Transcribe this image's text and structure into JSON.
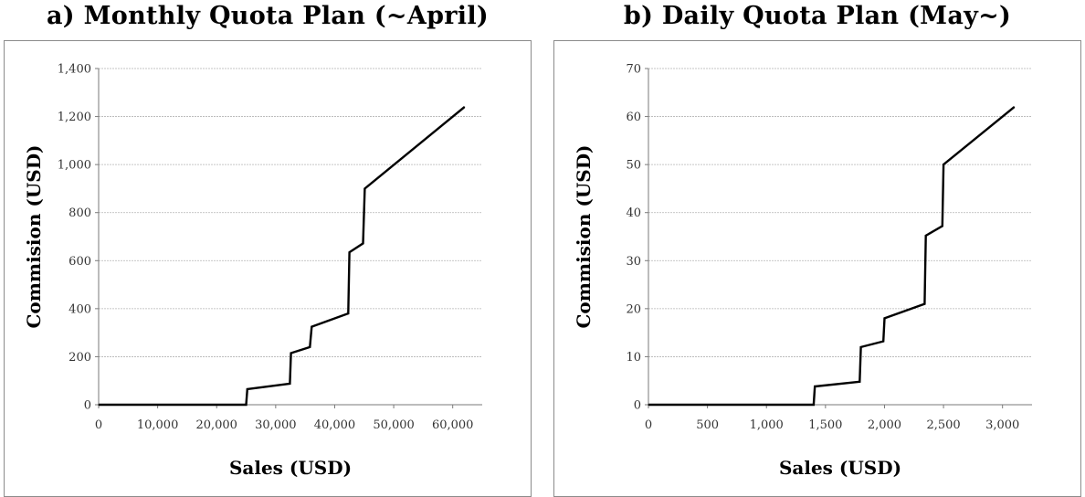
{
  "chart_data": [
    {
      "type": "line",
      "title": "a)  Monthly Quota Plan (~April)",
      "xlabel": "Sales (USD)",
      "ylabel": "Commision (USD)",
      "xlim": [
        0,
        65000
      ],
      "ylim": [
        0,
        1400
      ],
      "xticks": [
        0,
        10000,
        20000,
        30000,
        40000,
        50000,
        60000
      ],
      "yticks": [
        0,
        200,
        400,
        600,
        800,
        1000,
        1200,
        1400
      ],
      "xtick_labels": [
        "0",
        "10,000",
        "20,000",
        "30,000",
        "40,000",
        "50,000",
        "60,000"
      ],
      "ytick_labels": [
        "0",
        "200",
        "400",
        "600",
        "800",
        "1,000",
        "1,200",
        "1,400"
      ],
      "grid": "horizontal",
      "series": [
        {
          "x": [
            0,
            25000,
            25200,
            32400,
            32600,
            35800,
            36100,
            42300,
            42500,
            44800,
            45100,
            62000
          ],
          "y": [
            0,
            0,
            65,
            88,
            215,
            240,
            325,
            380,
            635,
            672,
            900,
            1240
          ]
        }
      ]
    },
    {
      "type": "line",
      "title": "b) Daily Quota Plan (May~)",
      "xlabel": "Sales (USD)",
      "ylabel": "Commision (USD)",
      "xlim": [
        0,
        3250
      ],
      "ylim": [
        0,
        70
      ],
      "xticks": [
        0,
        500,
        1000,
        1500,
        2000,
        2500,
        3000
      ],
      "yticks": [
        0,
        10,
        20,
        30,
        40,
        50,
        60,
        70
      ],
      "xtick_labels": [
        "0",
        "500",
        "1,000",
        "1,500",
        "2,000",
        "2,500",
        "3,000"
      ],
      "ytick_labels": [
        "0",
        "10",
        "20",
        "30",
        "40",
        "50",
        "60",
        "70"
      ],
      "grid": "horizontal",
      "series": [
        {
          "x": [
            0,
            1400,
            1410,
            1790,
            1800,
            1990,
            2000,
            2340,
            2350,
            2490,
            2500,
            3100
          ],
          "y": [
            0,
            0,
            3.8,
            4.8,
            12,
            13.2,
            18,
            21,
            35.2,
            37.2,
            50,
            62
          ]
        }
      ]
    }
  ]
}
